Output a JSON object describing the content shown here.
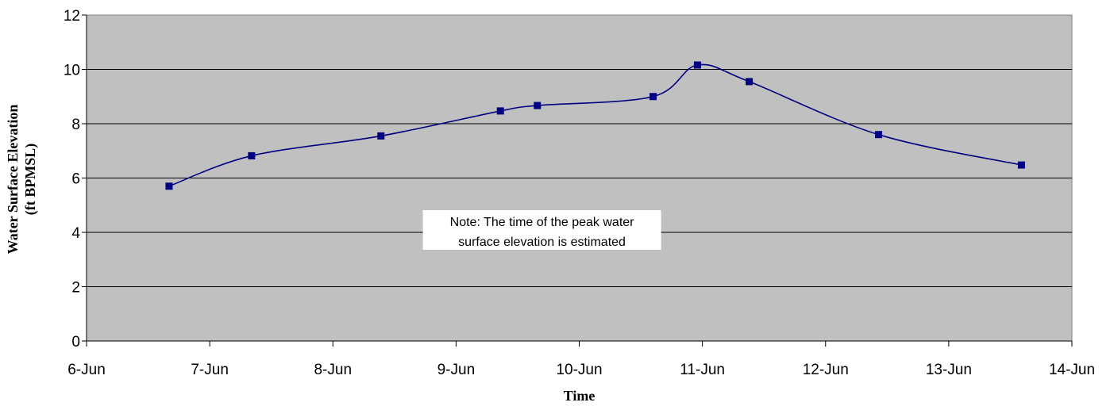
{
  "chart_data": {
    "type": "line",
    "title": "",
    "xlabel": "Time",
    "ylabel": [
      "Water Surface Elevation",
      "(ft BPMSL)"
    ],
    "xlim": [
      6,
      14
    ],
    "ylim": [
      0,
      12
    ],
    "x_ticks": [
      6,
      7,
      8,
      9,
      10,
      11,
      12,
      13,
      14
    ],
    "x_tick_labels": [
      "6-Jun",
      "7-Jun",
      "8-Jun",
      "9-Jun",
      "10-Jun",
      "11-Jun",
      "12-Jun",
      "13-Jun",
      "14-Jun"
    ],
    "y_ticks": [
      0,
      2,
      4,
      6,
      8,
      10,
      12
    ],
    "y_tick_labels": [
      "0",
      "2",
      "4",
      "6",
      "8",
      "10",
      "12"
    ],
    "grid": "horizontal",
    "legend": "none",
    "plot_background": "#c0c0c0",
    "series": [
      {
        "color": "#000080",
        "marker": "square",
        "smoothed": true,
        "x": [
          "6-Jun 16:00",
          "7-Jun 08:00",
          "8-Jun 09:30",
          "9-Jun 08:30",
          "9-Jun 16:00",
          "10-Jun 14:30",
          "10-Jun 23:00",
          "11-Jun 09:30",
          "12-Jun 10:30",
          "13-Jun 14:00"
        ],
        "x_values": [
          6.67,
          7.34,
          8.39,
          9.36,
          9.66,
          10.6,
          10.96,
          11.38,
          12.43,
          13.59
        ],
        "y": [
          5.7,
          6.82,
          7.55,
          8.47,
          8.67,
          9.0,
          10.16,
          9.55,
          7.6,
          6.48
        ]
      }
    ],
    "annotations": [
      {
        "text": [
          "Note: The time of the peak water",
          "surface elevation is estimated"
        ],
        "x": 10.6,
        "y": 4
      }
    ]
  }
}
